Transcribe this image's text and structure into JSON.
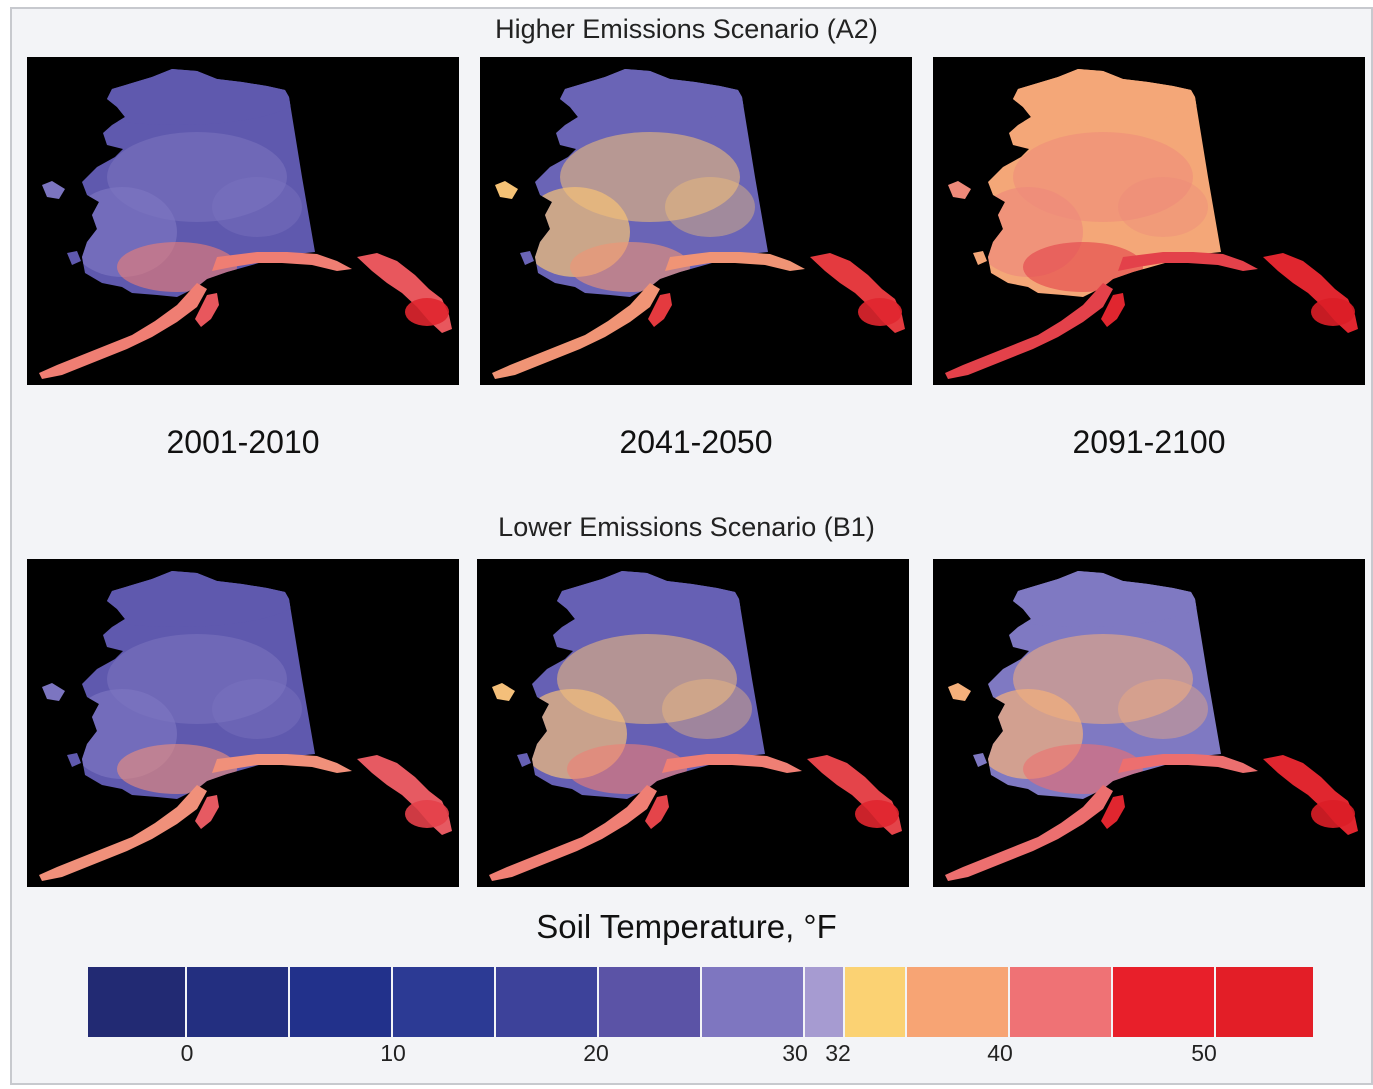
{
  "scenarios": [
    {
      "title": "Higher Emissions Scenario (A2)",
      "key": "a2"
    },
    {
      "title": "Lower Emissions Scenario (B1)",
      "key": "b1"
    }
  ],
  "periods": [
    "2001-2010",
    "2041-2050",
    "2091-2100"
  ],
  "legend": {
    "title": "Soil Temperature, °F",
    "bins": [
      {
        "color": "#222a73"
      },
      {
        "color": "#232f80"
      },
      {
        "color": "#22318b"
      },
      {
        "color": "#2c3a94"
      },
      {
        "color": "#3d429a"
      },
      {
        "color": "#5b53a6"
      },
      {
        "color": "#7e76c0"
      },
      {
        "color": "#a69bd1"
      },
      {
        "color": "#fbd273"
      },
      {
        "color": "#f7a474"
      },
      {
        "color": "#ef7275"
      },
      {
        "color": "#e81f2a"
      },
      {
        "color": "#e31e27"
      }
    ],
    "ticks": [
      "0",
      "10",
      "20",
      "30",
      "32",
      "40",
      "50"
    ]
  },
  "map_colors": {
    "a2": [
      {
        "base": "#5f59ae",
        "mid": "#7c75c0",
        "coast": "#ef7e73",
        "se": "#e8575d",
        "tip": "#e0262f"
      },
      {
        "base": "#6a64b6",
        "mid": "#f5c276",
        "coast": "#f09475",
        "se": "#e43a3f",
        "tip": "#e0262f"
      },
      {
        "base": "#f4a778",
        "mid": "#ee8a7a",
        "coast": "#e3414a",
        "se": "#e0262f",
        "tip": "#dc1e27"
      }
    ],
    "b1": [
      {
        "base": "#5f59ae",
        "mid": "#7c75c0",
        "coast": "#f0907a",
        "se": "#e65a62",
        "tip": "#e4404a"
      },
      {
        "base": "#6660b4",
        "mid": "#f4bf7a",
        "coast": "#ef7f74",
        "se": "#e4444a",
        "tip": "#e0262f"
      },
      {
        "base": "#7f79c2",
        "mid": "#f5b07b",
        "coast": "#ec6f6f",
        "se": "#e0262f",
        "tip": "#dc1e27"
      }
    ]
  }
}
